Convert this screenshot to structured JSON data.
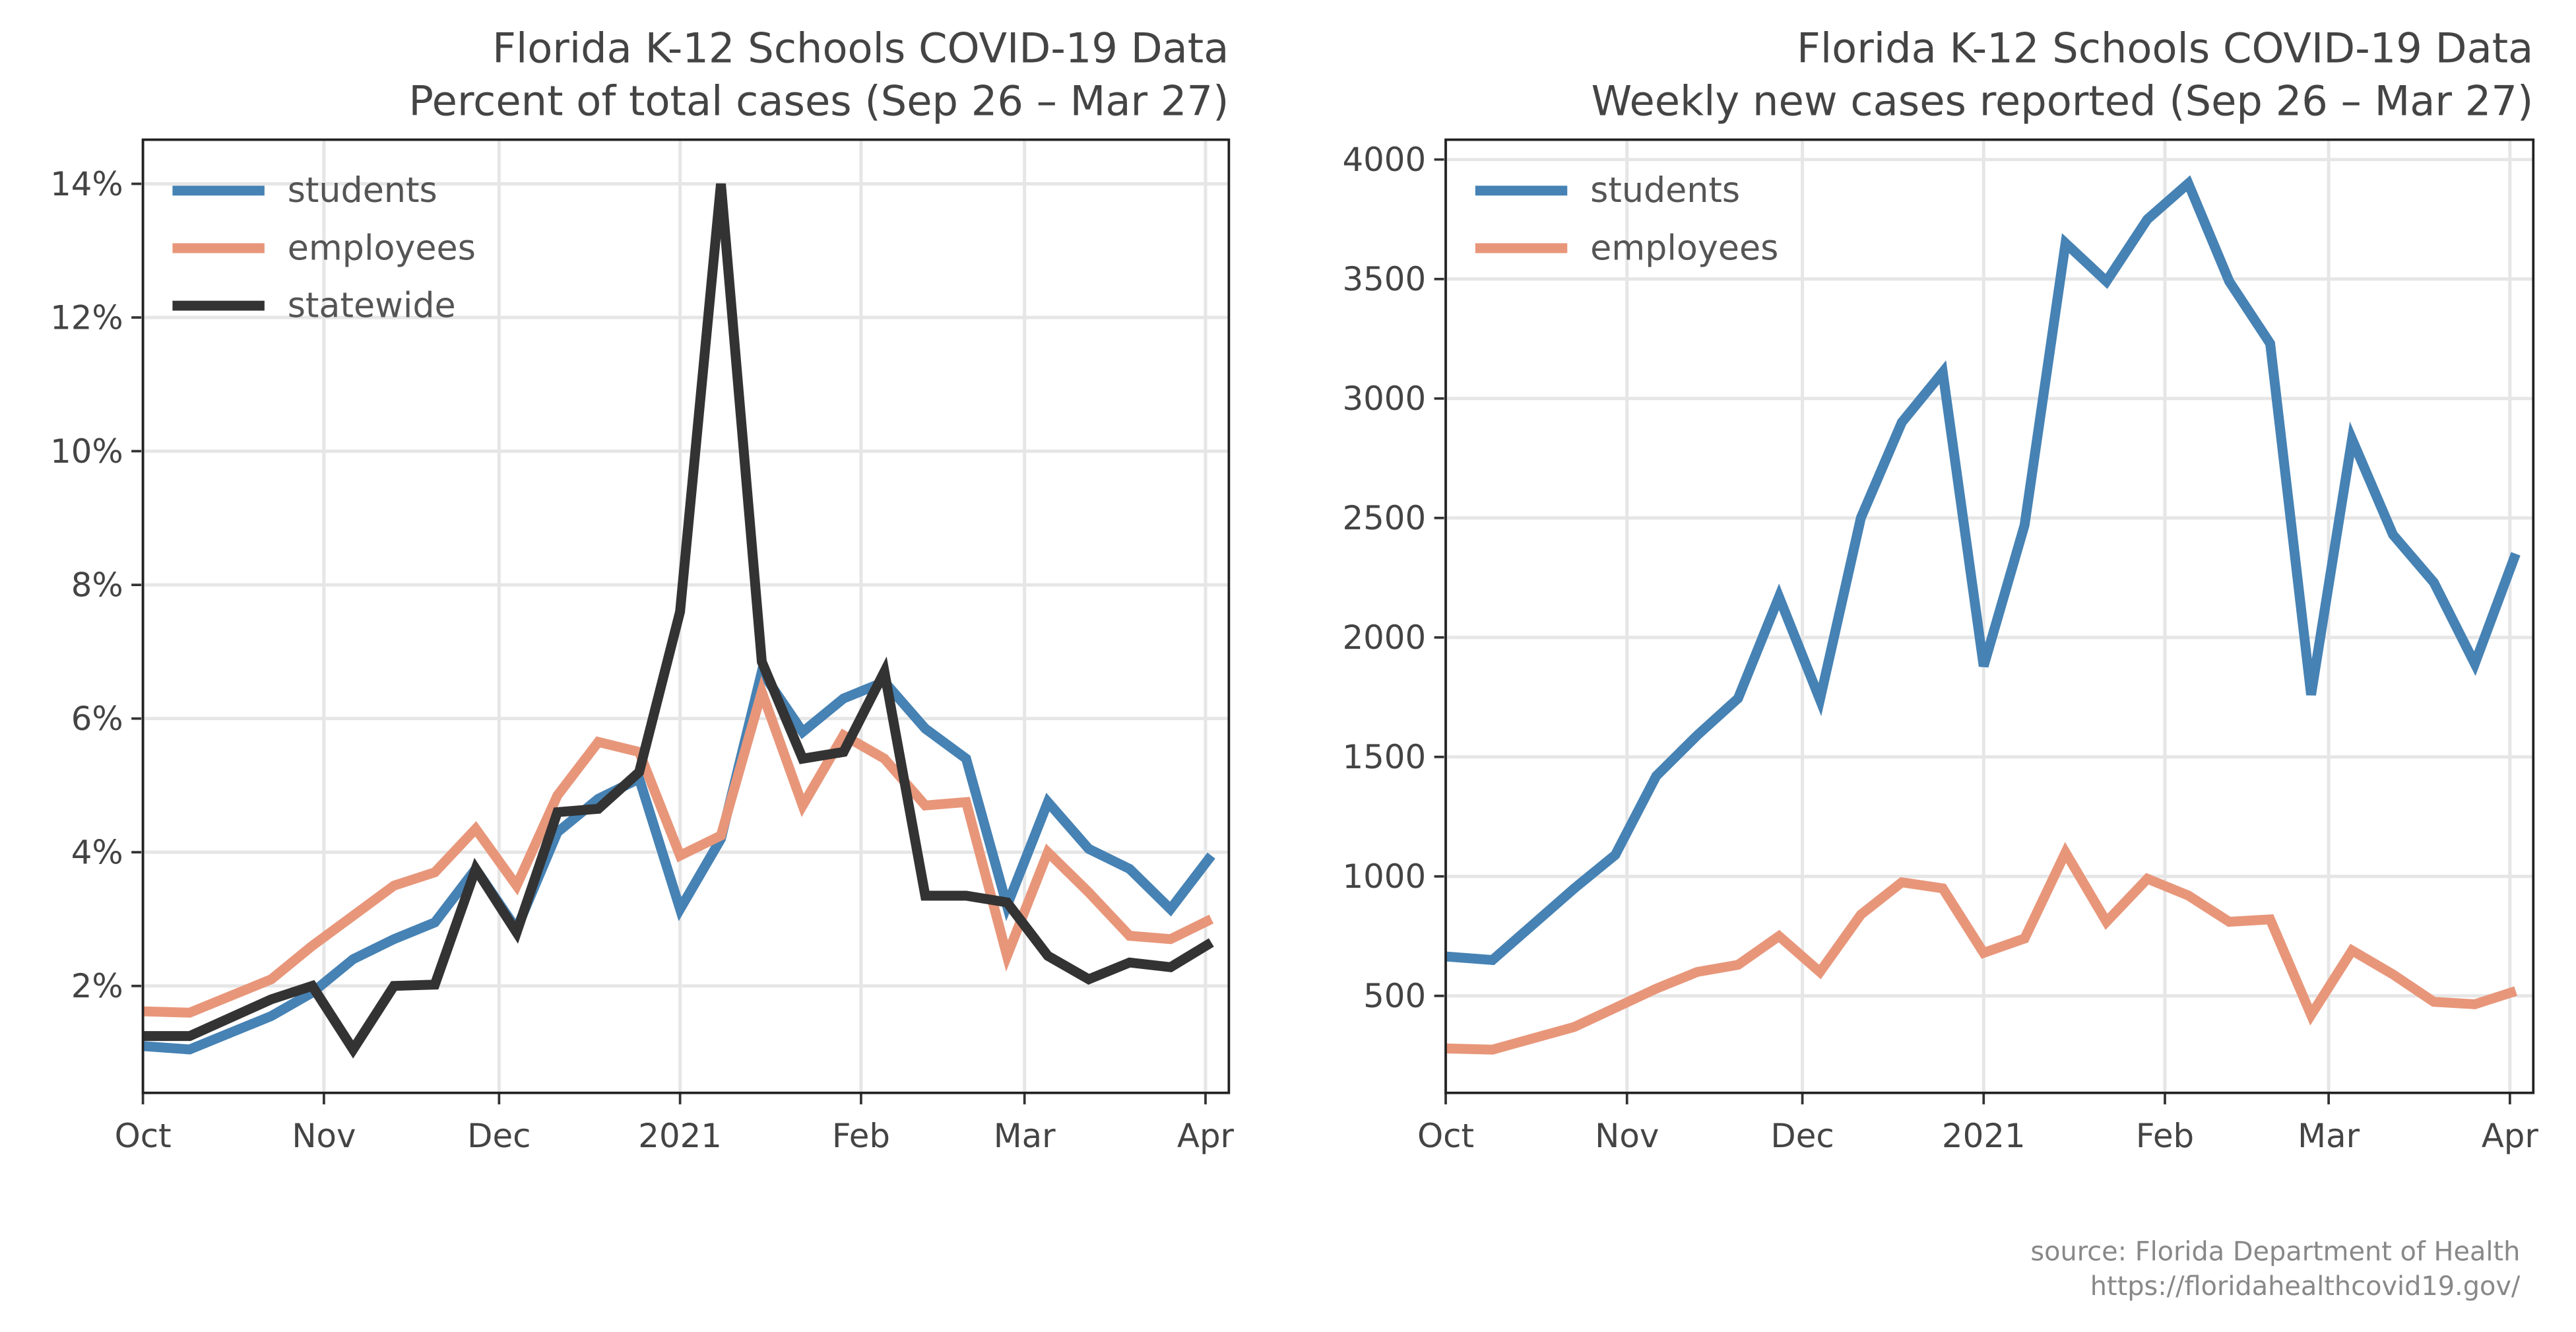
{
  "chart_data": [
    {
      "type": "line",
      "title": "Florida K-12 Schools COVID-19 Data",
      "subtitle": "Percent of total cases (Sep 26 – Mar 27)",
      "x": [
        0,
        8,
        22,
        29,
        36,
        43,
        50,
        57,
        64,
        71,
        78,
        85,
        92,
        99,
        106,
        113,
        120,
        127,
        134,
        141,
        148,
        155,
        162,
        169,
        176,
        183
      ],
      "xlim": [
        0,
        186
      ],
      "xticks": [
        {
          "value": 0,
          "label": "Oct"
        },
        {
          "value": 31,
          "label": "Nov"
        },
        {
          "value": 61,
          "label": "Dec"
        },
        {
          "value": 92,
          "label": "2021"
        },
        {
          "value": 123,
          "label": "Feb"
        },
        {
          "value": 151,
          "label": "Mar"
        },
        {
          "value": 182,
          "label": "Apr"
        }
      ],
      "ylim": [
        0.4,
        14.66
      ],
      "yticks": [
        {
          "value": 2,
          "label": "2%"
        },
        {
          "value": 4,
          "label": "4%"
        },
        {
          "value": 6,
          "label": "6%"
        },
        {
          "value": 8,
          "label": "8%"
        },
        {
          "value": 10,
          "label": "10%"
        },
        {
          "value": 12,
          "label": "12%"
        },
        {
          "value": 14,
          "label": "14%"
        }
      ],
      "grid": true,
      "legend": "upper-left",
      "series": [
        {
          "name": "students",
          "color": "#4682b4",
          "values": [
            1.1,
            1.05,
            1.55,
            1.9,
            2.4,
            2.7,
            2.95,
            3.75,
            2.85,
            4.3,
            4.8,
            5.1,
            3.15,
            4.2,
            6.7,
            5.8,
            6.3,
            6.55,
            5.85,
            5.4,
            3.2,
            4.75,
            4.05,
            3.75,
            3.15,
            3.95
          ]
        },
        {
          "name": "employees",
          "color": "#e8967a",
          "values": [
            1.62,
            1.6,
            2.1,
            2.6,
            3.05,
            3.5,
            3.7,
            4.35,
            3.5,
            4.85,
            5.65,
            5.5,
            3.95,
            4.25,
            6.4,
            4.7,
            5.75,
            5.4,
            4.7,
            4.75,
            2.45,
            4.0,
            3.4,
            2.75,
            2.7,
            3.0
          ]
        },
        {
          "name": "statewide",
          "color": "#333333",
          "values": [
            1.25,
            1.25,
            1.8,
            2.0,
            1.05,
            2.0,
            2.02,
            3.75,
            2.8,
            4.6,
            4.65,
            5.2,
            7.6,
            14.0,
            6.85,
            5.4,
            5.5,
            6.7,
            3.35,
            3.35,
            3.25,
            2.45,
            2.1,
            2.35,
            2.28,
            2.65
          ]
        }
      ]
    },
    {
      "type": "line",
      "title": "Florida K-12 Schools COVID-19 Data",
      "subtitle": "Weekly new cases reported (Sep 26 – Mar 27)",
      "x": [
        0,
        8,
        22,
        29,
        36,
        43,
        50,
        57,
        64,
        71,
        78,
        85,
        92,
        99,
        106,
        113,
        120,
        127,
        134,
        141,
        148,
        155,
        162,
        169,
        176,
        183
      ],
      "xlim": [
        0,
        186
      ],
      "xticks": [
        {
          "value": 0,
          "label": "Oct"
        },
        {
          "value": 31,
          "label": "Nov"
        },
        {
          "value": 61,
          "label": "Dec"
        },
        {
          "value": 92,
          "label": "2021"
        },
        {
          "value": 123,
          "label": "Feb"
        },
        {
          "value": 151,
          "label": "Mar"
        },
        {
          "value": 182,
          "label": "Apr"
        }
      ],
      "ylim": [
        94,
        4083
      ],
      "yticks": [
        500,
        1000,
        1500,
        2000,
        2500,
        3000,
        3500,
        4000
      ],
      "grid": true,
      "legend": "upper-left",
      "series": [
        {
          "name": "students",
          "color": "#4682b4",
          "values": [
            665,
            650,
            950,
            1090,
            1420,
            1590,
            1745,
            2170,
            1740,
            2500,
            2900,
            3110,
            1880,
            2470,
            3650,
            3490,
            3750,
            3900,
            3490,
            3230,
            1760,
            2830,
            2430,
            2230,
            1890,
            2350
          ]
        },
        {
          "name": "employees",
          "color": "#e8967a",
          "values": [
            280,
            275,
            370,
            450,
            530,
            600,
            630,
            750,
            600,
            840,
            975,
            950,
            680,
            740,
            1100,
            810,
            990,
            920,
            810,
            820,
            420,
            690,
            590,
            475,
            465,
            520
          ]
        }
      ]
    }
  ],
  "source": [
    "source: Florida Department of Health",
    "https://floridahealthcovid19.gov/"
  ]
}
